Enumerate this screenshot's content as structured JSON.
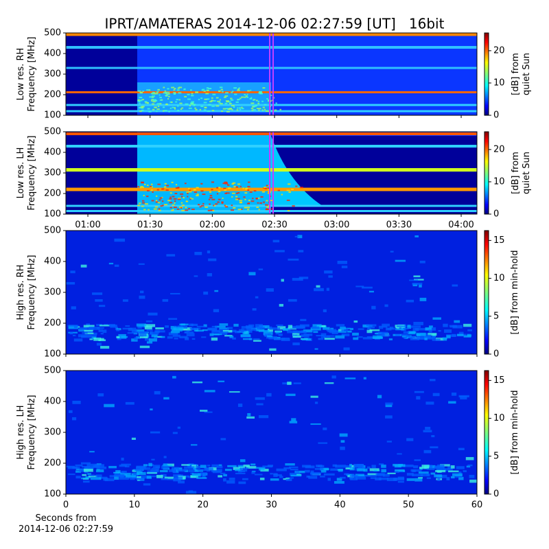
{
  "title": "IPRT/AMATERAS 2014-12-06 02:27:59 [UT]   16bit",
  "chart_data": [
    {
      "type": "heatmap",
      "ylabel": [
        "Low res. RH",
        "Frequency [MHz]"
      ],
      "ylim": [
        100,
        500
      ],
      "yticks": [
        100,
        200,
        300,
        400,
        500
      ],
      "xlim": [
        49.4,
        247.6
      ],
      "colorbar": {
        "label": [
          "[dB] from",
          "quiet Sun"
        ],
        "clim": [
          0,
          25.5
        ],
        "ticks": [
          0,
          10,
          20
        ]
      }
    },
    {
      "type": "heatmap",
      "ylabel": [
        "Low res. LH",
        "Frequency [MHz]"
      ],
      "ylim": [
        100,
        500
      ],
      "yticks": [
        100,
        200,
        300,
        400,
        500
      ],
      "xlim": [
        49.4,
        247.6
      ],
      "xticks": [
        {
          "value": 60,
          "label": "01:00"
        },
        {
          "value": 90,
          "label": "01:30"
        },
        {
          "value": 120,
          "label": "02:00"
        },
        {
          "value": 150,
          "label": "02:30"
        },
        {
          "value": 180,
          "label": "03:00"
        },
        {
          "value": 210,
          "label": "03:30"
        },
        {
          "value": 240,
          "label": "04:00"
        }
      ],
      "colorbar": {
        "label": [
          "[dB] from",
          "quiet Sun"
        ],
        "clim": [
          0,
          25.5
        ],
        "ticks": [
          0,
          10,
          20
        ]
      }
    },
    {
      "type": "heatmap",
      "ylabel": [
        "High res. RH",
        "Frequency [MHz]"
      ],
      "ylim": [
        100,
        500
      ],
      "yticks": [
        100,
        200,
        300,
        400,
        500
      ],
      "xlim": [
        0,
        60
      ],
      "colorbar": {
        "label": [
          "[dB] from min-hold"
        ],
        "clim": [
          0,
          16.3
        ],
        "ticks": [
          0,
          5,
          10,
          15
        ]
      }
    },
    {
      "type": "heatmap",
      "ylabel": [
        "High res. LH",
        "Frequency [MHz]"
      ],
      "ylim": [
        100,
        500
      ],
      "yticks": [
        100,
        200,
        300,
        400,
        500
      ],
      "xlim": [
        0,
        60
      ],
      "xticks": [
        0,
        10,
        20,
        30,
        40,
        50,
        60
      ],
      "xlabel": [
        "Seconds from",
        "2014-12-06 02:27:59"
      ],
      "colorbar": {
        "label": [
          "[dB] from min-hold"
        ],
        "clim": [
          0,
          16.3
        ],
        "ticks": [
          0,
          5,
          10,
          15
        ]
      }
    }
  ]
}
